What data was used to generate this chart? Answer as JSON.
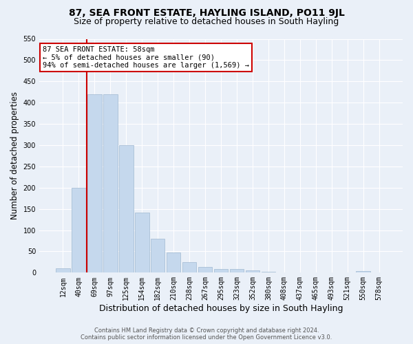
{
  "title": "87, SEA FRONT ESTATE, HAYLING ISLAND, PO11 9JL",
  "subtitle": "Size of property relative to detached houses in South Hayling",
  "xlabel": "Distribution of detached houses by size in South Hayling",
  "ylabel": "Number of detached properties",
  "footer_line1": "Contains HM Land Registry data © Crown copyright and database right 2024.",
  "footer_line2": "Contains public sector information licensed under the Open Government Licence v3.0.",
  "categories": [
    "12sqm",
    "40sqm",
    "69sqm",
    "97sqm",
    "125sqm",
    "154sqm",
    "182sqm",
    "210sqm",
    "238sqm",
    "267sqm",
    "295sqm",
    "323sqm",
    "352sqm",
    "380sqm",
    "408sqm",
    "437sqm",
    "465sqm",
    "493sqm",
    "521sqm",
    "550sqm",
    "578sqm"
  ],
  "values": [
    10,
    200,
    420,
    420,
    300,
    142,
    80,
    48,
    25,
    13,
    8,
    8,
    5,
    2,
    1,
    0,
    0,
    0,
    0,
    4,
    0
  ],
  "bar_color": "#c5d8ed",
  "bar_edge_color": "#a0b8d0",
  "vline_x": 1.5,
  "vline_color": "#cc0000",
  "annotation_text": "87 SEA FRONT ESTATE: 58sqm\n← 5% of detached houses are smaller (90)\n94% of semi-detached houses are larger (1,569) →",
  "annotation_box_color": "#ffffff",
  "annotation_box_edge_color": "#cc0000",
  "ylim": [
    0,
    550
  ],
  "yticks": [
    0,
    50,
    100,
    150,
    200,
    250,
    300,
    350,
    400,
    450,
    500,
    550
  ],
  "background_color": "#eaf0f8",
  "plot_bg_color": "#eaf0f8",
  "title_fontsize": 10,
  "subtitle_fontsize": 9,
  "tick_fontsize": 7,
  "ylabel_fontsize": 8.5,
  "xlabel_fontsize": 9
}
